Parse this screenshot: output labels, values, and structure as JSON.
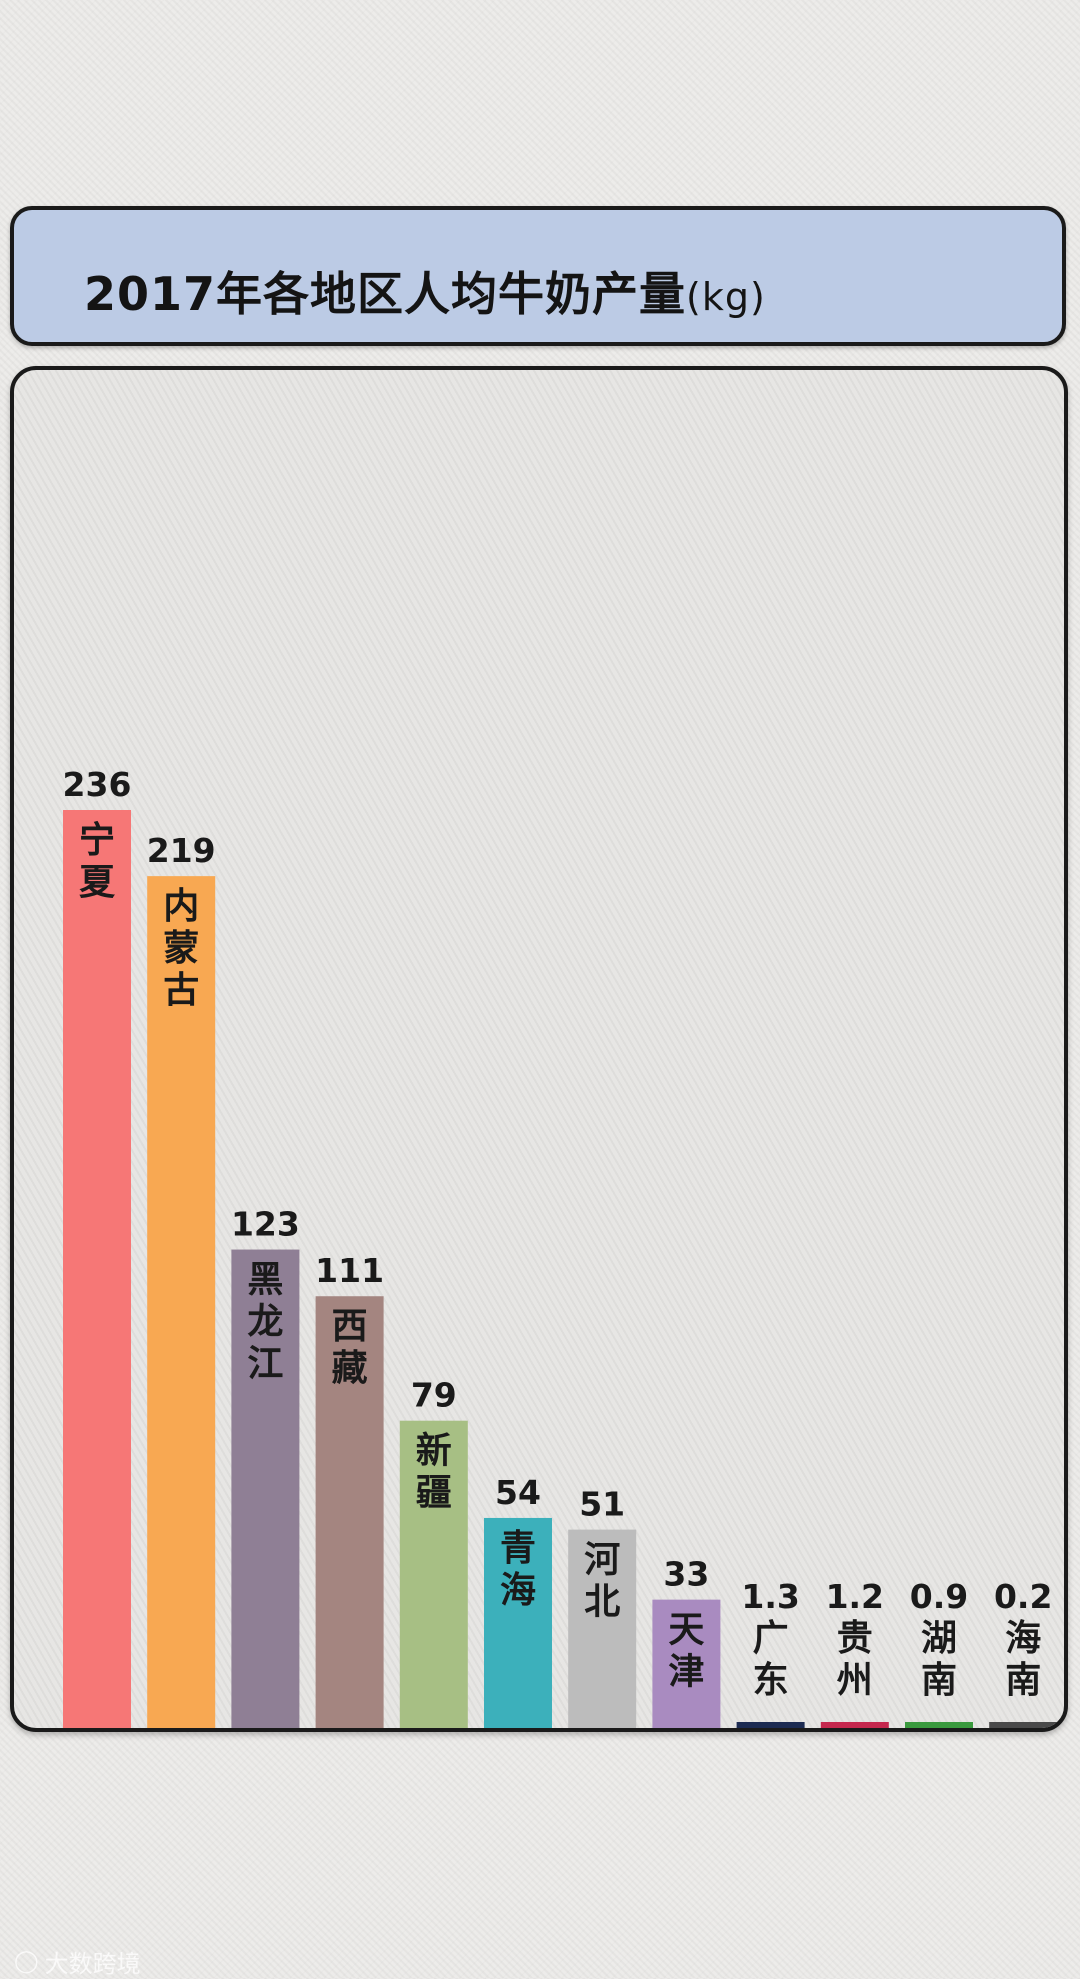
{
  "title": {
    "main": "2017年各地区人均牛奶产量",
    "unit": "(kg)"
  },
  "watermark": {
    "icon": "logo-icon",
    "text": "大数跨境"
  },
  "chart_data": {
    "type": "bar",
    "title": "2017年各地区人均牛奶产量(kg)",
    "xlabel": "",
    "ylabel": "",
    "ylim": [
      0,
      236
    ],
    "grid": false,
    "legend": "none",
    "categories": [
      "宁夏",
      "内蒙古",
      "黑龙江",
      "西藏",
      "新疆",
      "青海",
      "河北",
      "天津",
      "广东",
      "贵州",
      "湖南",
      "海南"
    ],
    "values": [
      236,
      219,
      123,
      111,
      79,
      54,
      51,
      33,
      1.3,
      1.2,
      0.9,
      0.2
    ],
    "value_labels": [
      "236",
      "219",
      "123",
      "111",
      "79",
      "54",
      "51",
      "33",
      "1.3",
      "1.2",
      "0.9",
      "0.2"
    ],
    "colors": [
      "#f67776",
      "#f8a852",
      "#8f7f95",
      "#a48580",
      "#a7bf84",
      "#3cb0bb",
      "#bcbcbc",
      "#a98bc0",
      "#1c2b52",
      "#c5284e",
      "#3a9a3e",
      "#4a4a4a"
    ]
  }
}
